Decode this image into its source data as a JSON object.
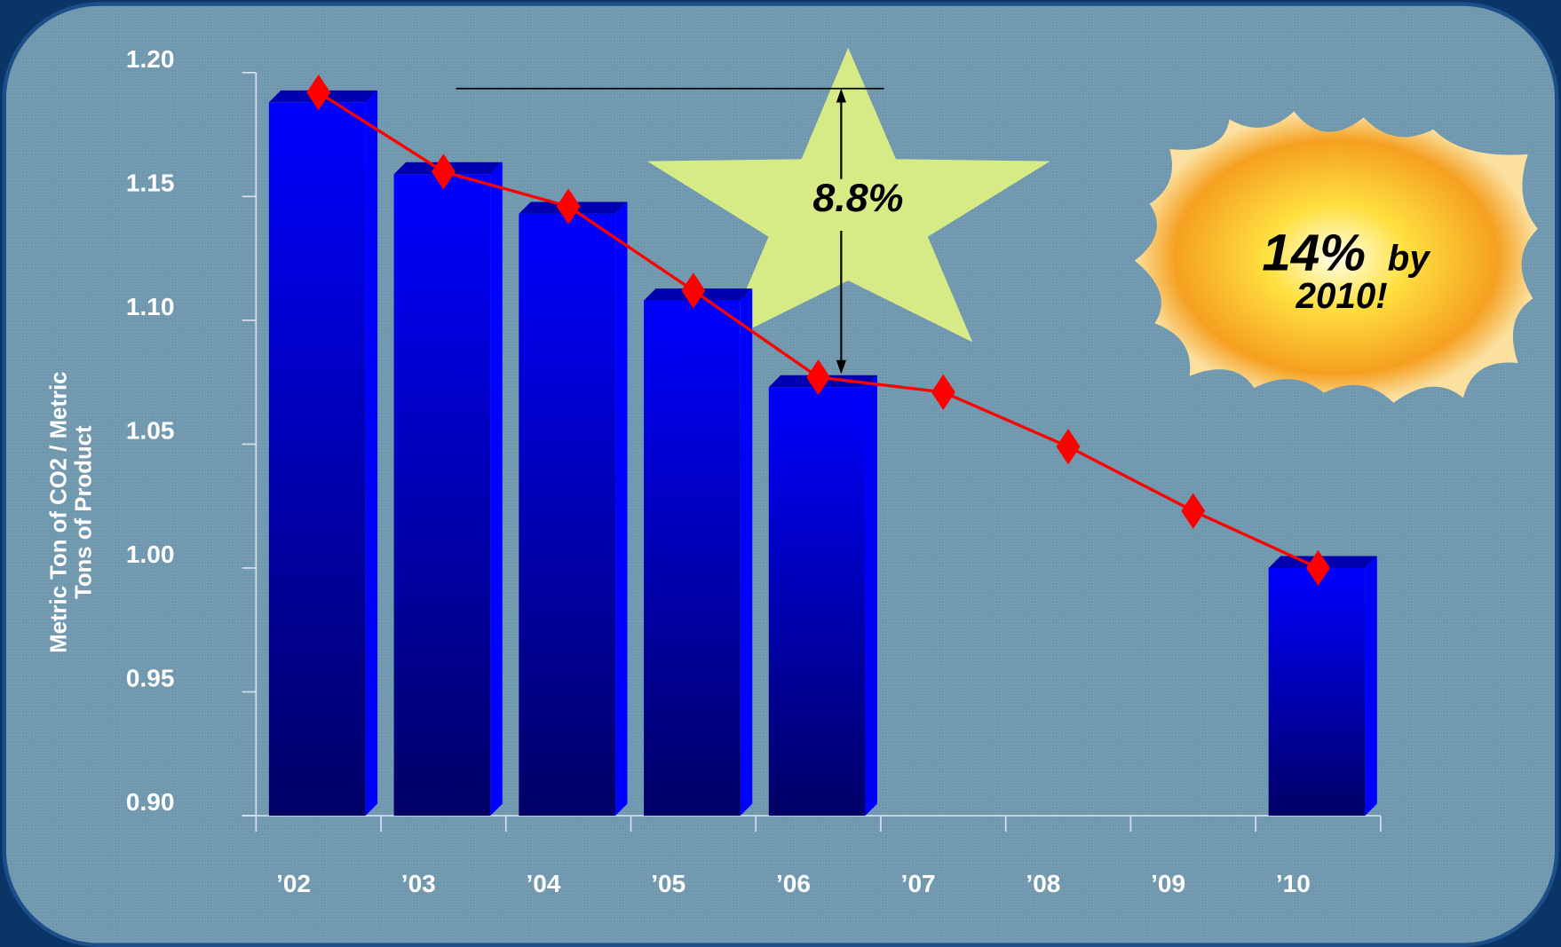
{
  "chart_data": {
    "type": "bar-line",
    "y_label": [
      "Metric Ton of CO2 / Metric",
      "Tons of Product"
    ],
    "categories": [
      "’02",
      "’03",
      "’04",
      "’05",
      "’06",
      "’07",
      "’08",
      "’09",
      "’10"
    ],
    "series": [
      {
        "type": "bar",
        "color": "#0000ff",
        "values": [
          1.188,
          1.159,
          1.143,
          1.108,
          1.073,
          null,
          null,
          null,
          1.0
        ]
      },
      {
        "type": "line",
        "color": "#ff0000",
        "values": [
          1.192,
          1.16,
          1.146,
          1.112,
          1.077,
          1.071,
          1.049,
          1.023,
          1.0
        ]
      }
    ],
    "ylim": [
      0.9,
      1.2
    ],
    "yticks": [
      {
        "value": 0.9,
        "label": "0.90"
      },
      0.95,
      {
        "value": 1.0,
        "label": "1.00"
      },
      1.05,
      {
        "value": 1.1,
        "label": "1.10"
      },
      1.15,
      {
        "value": 1.2,
        "label": "1.20"
      }
    ],
    "grid": false,
    "annotations": {
      "star_label": "8.8%",
      "burst_label": [
        "14%",
        "by",
        "2010!"
      ]
    }
  }
}
